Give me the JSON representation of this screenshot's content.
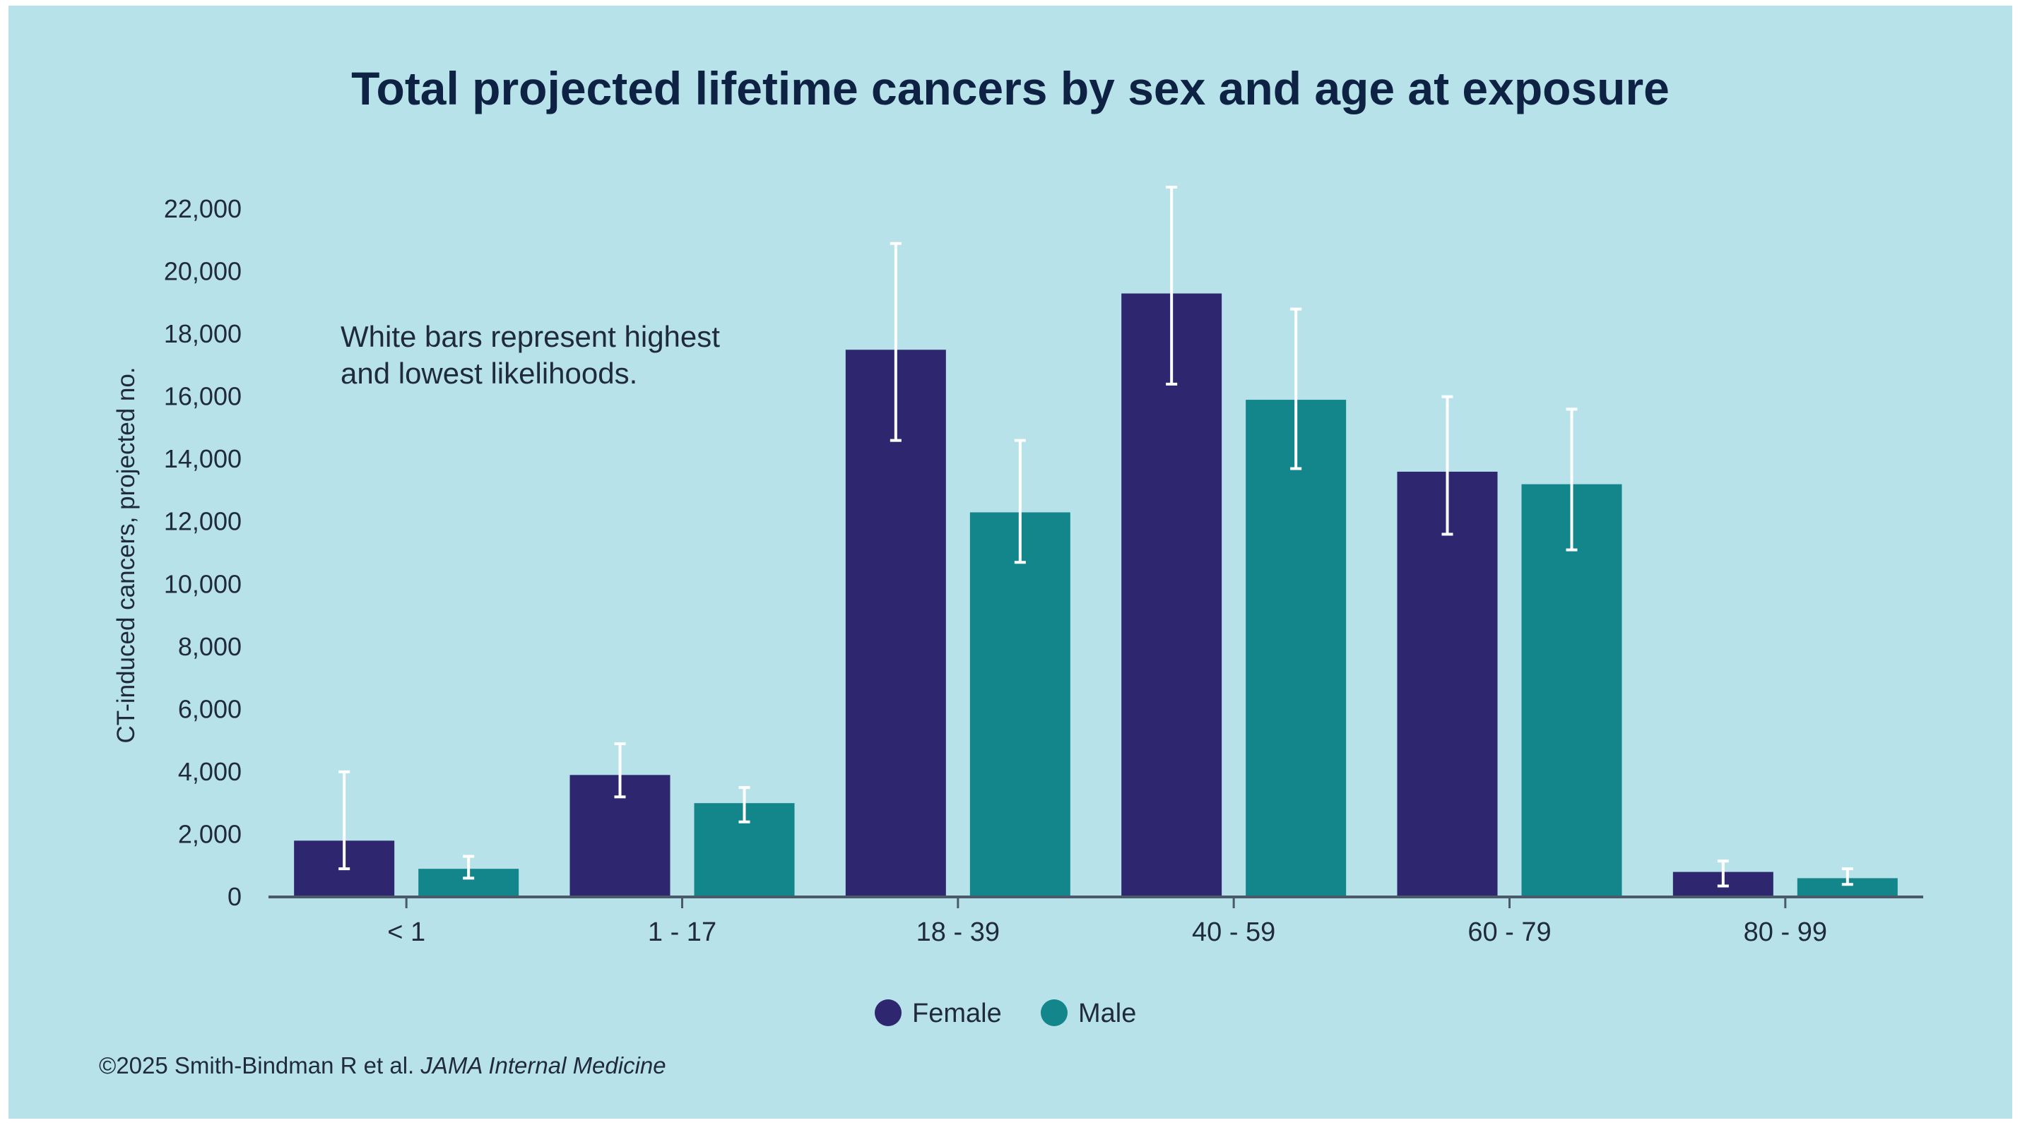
{
  "chart_data": {
    "type": "bar",
    "title": "Total projected lifetime cancers by sex and age at exposure",
    "ylabel": "CT-induced cancers, projected no.",
    "xlabel": "",
    "ylim": [
      0,
      22000
    ],
    "yticks": [
      0,
      2000,
      4000,
      6000,
      8000,
      10000,
      12000,
      14000,
      16000,
      18000,
      20000,
      22000
    ],
    "ytick_labels": [
      "0",
      "2,000",
      "4,000",
      "6,000",
      "8,000",
      "10,000",
      "12,000",
      "14,000",
      "16,000",
      "18,000",
      "20,000",
      "22,000"
    ],
    "categories": [
      "< 1",
      "1 - 17",
      "18 - 39",
      "40 - 59",
      "60 - 79",
      "80 - 99"
    ],
    "series": [
      {
        "name": "Female",
        "color": "#2e266e",
        "values": [
          1800,
          3900,
          17500,
          19300,
          13600,
          800
        ],
        "low": [
          900,
          3200,
          14600,
          16400,
          11600,
          350
        ],
        "high": [
          4000,
          4900,
          20900,
          22700,
          16000,
          1150
        ]
      },
      {
        "name": "Male",
        "color": "#13868c",
        "values": [
          900,
          3000,
          12300,
          15900,
          13200,
          600
        ],
        "low": [
          600,
          2400,
          10700,
          13700,
          11100,
          400
        ],
        "high": [
          1300,
          3500,
          14600,
          18800,
          15600,
          900
        ]
      }
    ],
    "grid": false,
    "legend": "bottom-center",
    "annotation": [
      "White bars represent highest",
      "and lowest likelihoods."
    ],
    "error_bar_color": "#ffffff"
  },
  "source": {
    "prefix": "©2025 Smith-Bindman R et al. ",
    "journal": "JAMA Internal Medicine"
  },
  "colors": {
    "background": "#b8e2e9",
    "title": "#0e2244",
    "axis": "#4a5a6a"
  }
}
